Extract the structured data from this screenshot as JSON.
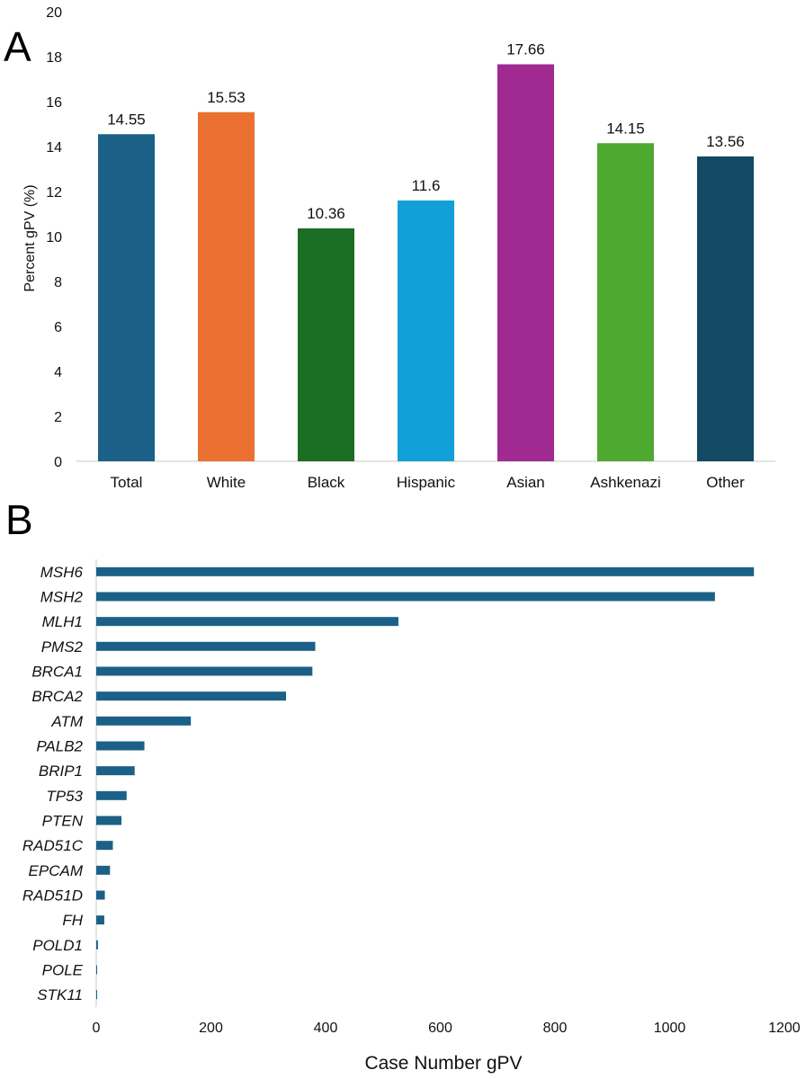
{
  "panel_labels": {
    "a": "A",
    "b": "B"
  },
  "chart_data": [
    {
      "id": "A",
      "type": "bar",
      "title": "",
      "xlabel": "",
      "ylabel": "Percent  gPV (%)",
      "ylim": [
        0,
        20
      ],
      "yticks": [
        0,
        2,
        4,
        6,
        8,
        10,
        12,
        14,
        16,
        18,
        20
      ],
      "categories": [
        "Total",
        "White",
        "Black",
        "Hispanic",
        "Asian",
        "Ashkenazi",
        "Other"
      ],
      "values": [
        14.55,
        15.53,
        10.36,
        11.6,
        17.66,
        14.15,
        13.56
      ],
      "value_labels": [
        "14.55",
        "15.53",
        "10.36",
        "11.6",
        "17.66",
        "14.15",
        "13.56"
      ],
      "colors": [
        "#1b6187",
        "#ea7131",
        "#1b6e23",
        "#11a0d8",
        "#a12a92",
        "#4ea930",
        "#124963"
      ],
      "grid": false,
      "legend": "none"
    },
    {
      "id": "B",
      "type": "bar",
      "orientation": "horizontal",
      "title": "",
      "xlabel": "Case Number gPV",
      "ylabel": "",
      "xlim": [
        0,
        1200
      ],
      "xticks": [
        0,
        200,
        400,
        600,
        800,
        1000,
        1200
      ],
      "categories": [
        "MSH6",
        "MSH2",
        "MLH1",
        "PMS2",
        "BRCA1",
        "BRCA2",
        "ATM",
        "PALB2",
        "BRIP1",
        "TP53",
        "PTEN",
        "RAD51C",
        "EPCAM",
        "RAD51D",
        "FH",
        "POLD1",
        "POLE",
        "STK11"
      ],
      "values": [
        1147,
        1079,
        527,
        382,
        377,
        331,
        165,
        84,
        67,
        53,
        44,
        29,
        24,
        15,
        14,
        3,
        1,
        1
      ],
      "color": "#1b6187",
      "grid": false,
      "legend": "none"
    }
  ]
}
